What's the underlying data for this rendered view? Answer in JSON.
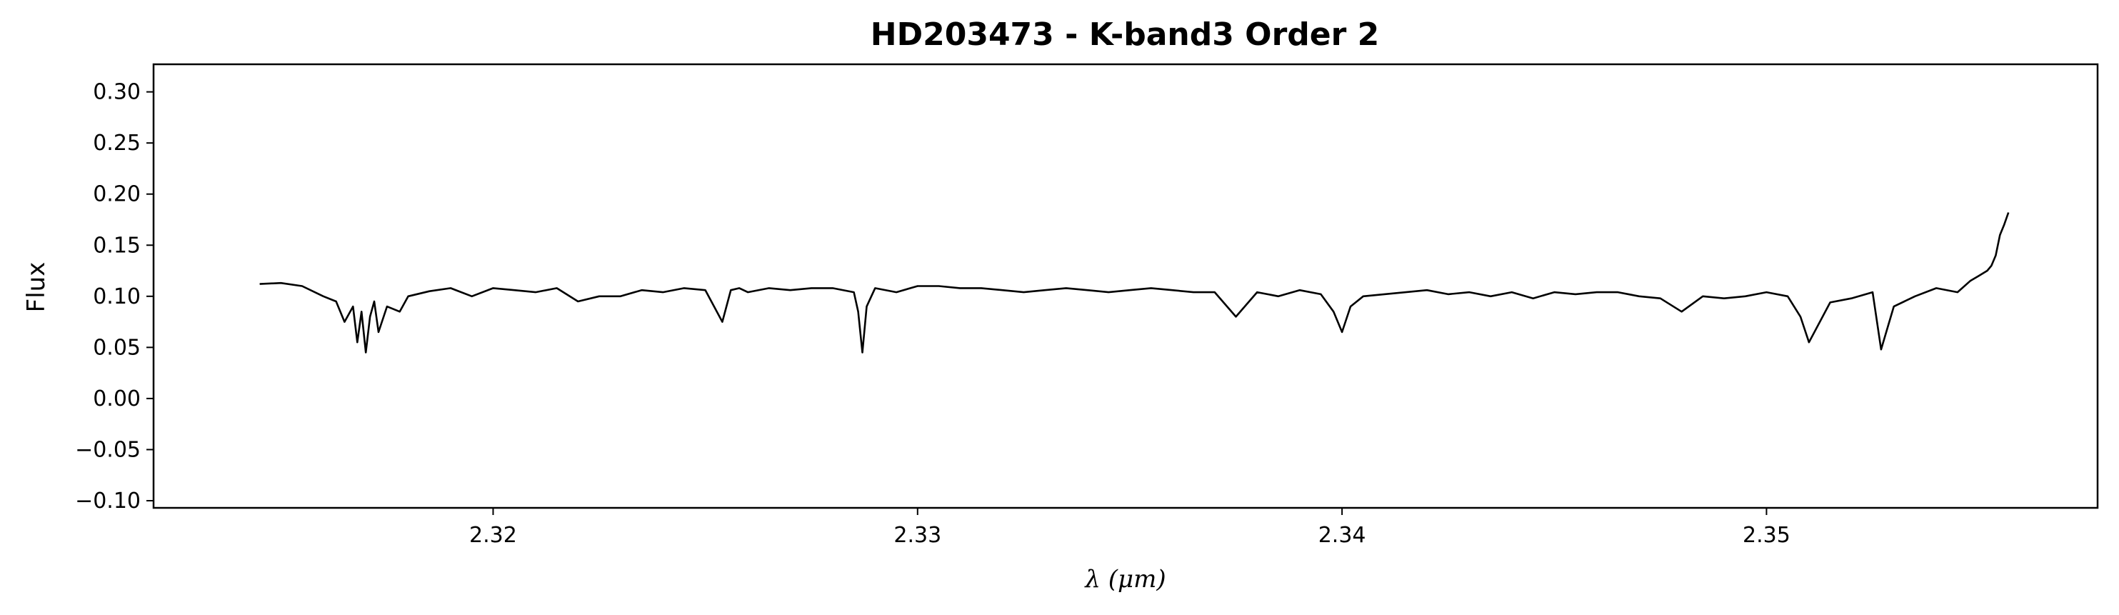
{
  "chart_data": {
    "type": "line",
    "title": "HD203473 - K-band3 Order 2",
    "xlabel": "λ (μm)",
    "ylabel": "Flux",
    "xlim": [
      2.312,
      2.3578
    ],
    "ylim": [
      -0.107,
      0.327
    ],
    "xticks": [
      2.32,
      2.33,
      2.34,
      2.35
    ],
    "xtick_labels": [
      "2.32",
      "2.33",
      "2.34",
      "2.35"
    ],
    "yticks": [
      -0.1,
      -0.05,
      0.0,
      0.05,
      0.1,
      0.15,
      0.2,
      0.25,
      0.3
    ],
    "ytick_labels": [
      "−0.10",
      "−0.05",
      "0.00",
      "0.05",
      "0.10",
      "0.15",
      "0.20",
      "0.25",
      "0.30"
    ],
    "grid": false,
    "legend": "none",
    "line_color": "#000000",
    "series": [
      {
        "x": [
          2.3145,
          2.315,
          2.3155,
          2.316,
          2.3163,
          2.3165,
          2.3167,
          2.3168,
          2.3169,
          2.317,
          2.3171,
          2.3172,
          2.3173,
          2.3175,
          2.3178,
          2.318,
          2.3185,
          2.319,
          2.3195,
          2.32,
          2.3205,
          2.321,
          2.3215,
          2.322,
          2.3225,
          2.323,
          2.3235,
          2.324,
          2.3245,
          2.325,
          2.3254,
          2.3256,
          2.3258,
          2.326,
          2.3265,
          2.327,
          2.3275,
          2.328,
          2.3285,
          2.3286,
          2.3287,
          2.3288,
          2.329,
          2.3295,
          2.33,
          2.3305,
          2.331,
          2.3315,
          2.332,
          2.3325,
          2.333,
          2.3335,
          2.334,
          2.3345,
          2.335,
          2.3355,
          2.336,
          2.3365,
          2.337,
          2.3375,
          2.338,
          2.3385,
          2.339,
          2.3395,
          2.3398,
          2.34,
          2.3402,
          2.3405,
          2.341,
          2.3415,
          2.342,
          2.3425,
          2.343,
          2.3435,
          2.344,
          2.3445,
          2.345,
          2.3455,
          2.346,
          2.3465,
          2.347,
          2.3475,
          2.348,
          2.3485,
          2.349,
          2.3495,
          2.35,
          2.3505,
          2.3508,
          2.351,
          2.3515,
          2.352,
          2.3525,
          2.3527,
          2.353,
          2.3535,
          2.354,
          2.3545,
          2.3548,
          2.355,
          2.3552,
          2.3553,
          2.3554,
          2.3555,
          2.3556,
          2.3557
        ],
        "y": [
          0.112,
          0.113,
          0.11,
          0.1,
          0.095,
          0.075,
          0.09,
          0.055,
          0.085,
          0.045,
          0.08,
          0.095,
          0.065,
          0.09,
          0.085,
          0.1,
          0.105,
          0.108,
          0.1,
          0.108,
          0.106,
          0.104,
          0.108,
          0.095,
          0.1,
          0.1,
          0.106,
          0.104,
          0.108,
          0.106,
          0.075,
          0.106,
          0.108,
          0.104,
          0.108,
          0.106,
          0.108,
          0.108,
          0.104,
          0.085,
          0.045,
          0.09,
          0.108,
          0.104,
          0.11,
          0.11,
          0.108,
          0.108,
          0.106,
          0.104,
          0.106,
          0.108,
          0.106,
          0.104,
          0.106,
          0.108,
          0.106,
          0.104,
          0.104,
          0.08,
          0.104,
          0.1,
          0.106,
          0.102,
          0.085,
          0.065,
          0.09,
          0.1,
          0.102,
          0.104,
          0.106,
          0.102,
          0.104,
          0.1,
          0.104,
          0.098,
          0.104,
          0.102,
          0.104,
          0.104,
          0.1,
          0.098,
          0.085,
          0.1,
          0.098,
          0.1,
          0.104,
          0.1,
          0.08,
          0.055,
          0.094,
          0.098,
          0.104,
          0.048,
          0.09,
          0.1,
          0.108,
          0.104,
          0.115,
          0.12,
          0.125,
          0.13,
          0.14,
          0.16,
          0.17,
          0.182
        ]
      }
    ]
  }
}
